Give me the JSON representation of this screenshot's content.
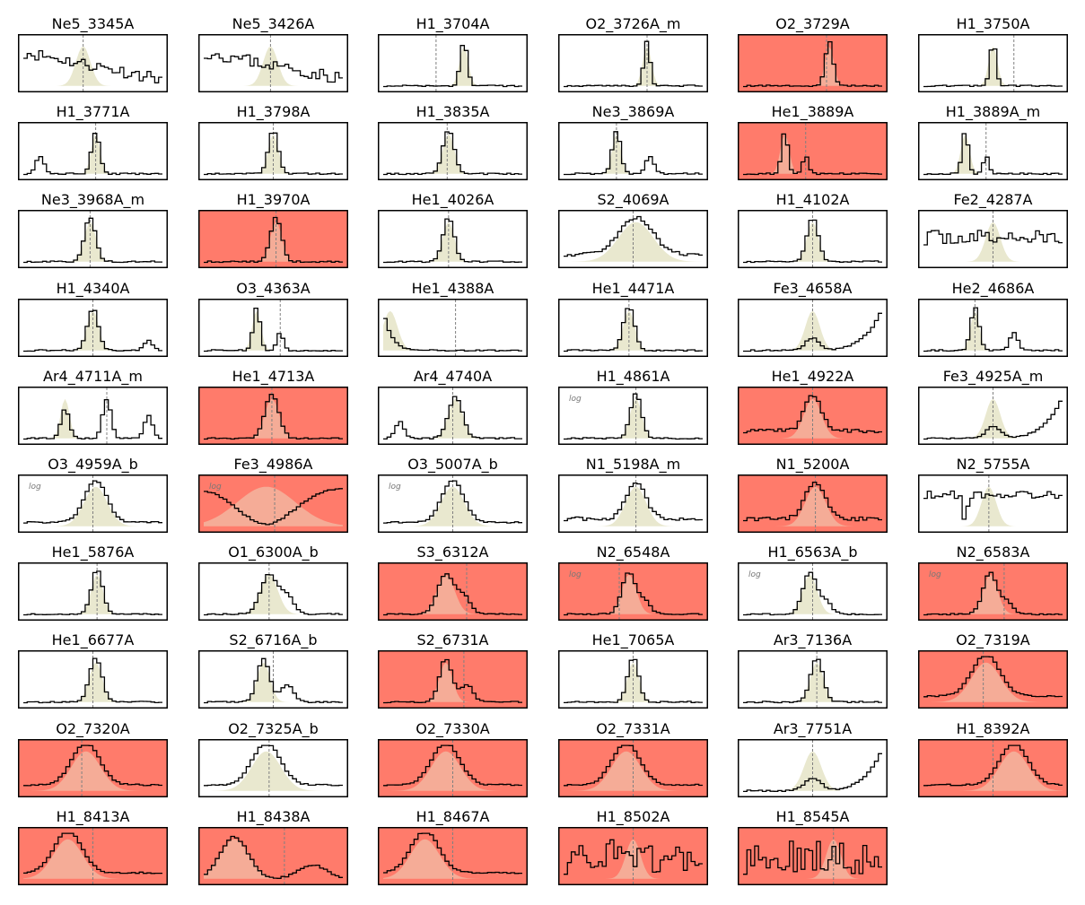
{
  "figure": {
    "background": "#ffffff",
    "flagged_color": "#ff7b6b",
    "normal_color": "#ffffff",
    "fill_color": "#e9e8cf",
    "line_color": "#000000",
    "marker_color": "#808080",
    "log_label": "log"
  },
  "chart_data": [
    {
      "title": "Ne5_3345A",
      "flagged": false,
      "log": false,
      "marker": 0.43,
      "profile": "noisy_up_left",
      "seed": 11
    },
    {
      "title": "Ne5_3426A",
      "flagged": false,
      "log": false,
      "marker": 0.48,
      "profile": "noisy_up_left",
      "seed": 23
    },
    {
      "title": "H1_3704A",
      "flagged": false,
      "log": false,
      "marker": 0.38,
      "profile": "single",
      "peak": 0.58,
      "width": 0.025
    },
    {
      "title": "O2_3726A_m",
      "flagged": false,
      "log": false,
      "marker": 0.6,
      "profile": "single",
      "peak": 0.6,
      "width": 0.022
    },
    {
      "title": "O2_3729A",
      "flagged": true,
      "log": false,
      "marker": 0.6,
      "profile": "single",
      "peak": 0.62,
      "width": 0.028
    },
    {
      "title": "H1_3750A",
      "flagged": false,
      "log": false,
      "marker": 0.65,
      "profile": "single",
      "peak": 0.5,
      "width": 0.022
    },
    {
      "title": "H1_3771A",
      "flagged": false,
      "log": false,
      "marker": 0.52,
      "profile": "single_side",
      "peak": 0.52,
      "width": 0.03
    },
    {
      "title": "H1_3798A",
      "flagged": false,
      "log": false,
      "marker": 0.5,
      "profile": "single",
      "peak": 0.5,
      "width": 0.035
    },
    {
      "title": "H1_3835A",
      "flagged": false,
      "log": false,
      "marker": 0.46,
      "profile": "single",
      "peak": 0.47,
      "width": 0.04
    },
    {
      "title": "Ne3_3869A",
      "flagged": false,
      "log": false,
      "marker": 0.38,
      "profile": "double",
      "peak": 0.38,
      "peak2": 0.62,
      "width": 0.03
    },
    {
      "title": "He1_3889A",
      "flagged": true,
      "log": false,
      "marker": 0.45,
      "profile": "double",
      "peak": 0.3,
      "peak2": 0.45,
      "width": 0.022
    },
    {
      "title": "H1_3889A_m",
      "flagged": false,
      "log": false,
      "marker": 0.45,
      "profile": "double",
      "peak": 0.3,
      "peak2": 0.45,
      "width": 0.022
    },
    {
      "title": "Ne3_3968A_m",
      "flagged": false,
      "log": false,
      "marker": 0.48,
      "profile": "single",
      "peak": 0.48,
      "width": 0.04
    },
    {
      "title": "H1_3970A",
      "flagged": true,
      "log": false,
      "marker": 0.52,
      "profile": "single",
      "peak": 0.52,
      "width": 0.04
    },
    {
      "title": "He1_4026A",
      "flagged": false,
      "log": false,
      "marker": 0.47,
      "profile": "single",
      "peak": 0.47,
      "width": 0.04
    },
    {
      "title": "S2_4069A",
      "flagged": false,
      "log": false,
      "marker": 0.5,
      "profile": "broad_noisy",
      "peak": 0.52,
      "width": 0.12
    },
    {
      "title": "H1_4102A",
      "flagged": false,
      "log": false,
      "marker": 0.5,
      "profile": "single",
      "peak": 0.5,
      "width": 0.04
    },
    {
      "title": "Fe2_4287A",
      "flagged": false,
      "log": false,
      "marker": 0.5,
      "profile": "noisy_flat",
      "seed": 37
    },
    {
      "title": "H1_4340A",
      "flagged": false,
      "log": false,
      "marker": 0.5,
      "profile": "single_right_bump",
      "peak": 0.5,
      "width": 0.04
    },
    {
      "title": "O3_4363A",
      "flagged": false,
      "log": false,
      "marker": 0.55,
      "profile": "double",
      "peak": 0.38,
      "peak2": 0.55,
      "width": 0.025
    },
    {
      "title": "He1_4388A",
      "flagged": false,
      "log": false,
      "marker": 0.52,
      "profile": "decay",
      "peak": 0.05,
      "width": 0.05
    },
    {
      "title": "He1_4471A",
      "flagged": false,
      "log": false,
      "marker": 0.47,
      "profile": "single",
      "peak": 0.47,
      "width": 0.04
    },
    {
      "title": "Fe3_4658A",
      "flagged": false,
      "log": false,
      "marker": 0.5,
      "profile": "rise_right",
      "peak": 0.5,
      "width": 0.05
    },
    {
      "title": "He2_4686A",
      "flagged": false,
      "log": false,
      "marker": 0.37,
      "profile": "double",
      "peak": 0.37,
      "peak2": 0.65,
      "width": 0.03
    },
    {
      "title": "Ar4_4711A_m",
      "flagged": false,
      "log": false,
      "marker": 0.6,
      "profile": "triple",
      "peak": 0.3,
      "peak2": 0.6,
      "width": 0.03
    },
    {
      "title": "He1_4713A",
      "flagged": true,
      "log": false,
      "marker": 0.49,
      "profile": "single",
      "peak": 0.49,
      "width": 0.05
    },
    {
      "title": "Ar4_4740A",
      "flagged": false,
      "log": false,
      "marker": 0.5,
      "profile": "single_side",
      "peak": 0.52,
      "width": 0.05
    },
    {
      "title": "H1_4861A",
      "flagged": false,
      "log": true,
      "marker": 0.52,
      "profile": "single",
      "peak": 0.52,
      "width": 0.04
    },
    {
      "title": "He1_4922A",
      "flagged": true,
      "log": false,
      "marker": 0.5,
      "profile": "broad_noisy",
      "peak": 0.5,
      "width": 0.06
    },
    {
      "title": "Fe3_4925A_m",
      "flagged": false,
      "log": false,
      "marker": 0.5,
      "profile": "rise_right",
      "peak": 0.5,
      "width": 0.05
    },
    {
      "title": "O3_4959A_b",
      "flagged": false,
      "log": true,
      "marker": 0.5,
      "profile": "broad_log",
      "peak": 0.52,
      "width": 0.08
    },
    {
      "title": "Fe3_4986A",
      "flagged": true,
      "log": true,
      "marker": 0.51,
      "profile": "valley",
      "peak": 0.45,
      "width": 0.2
    },
    {
      "title": "O3_5007A_b",
      "flagged": false,
      "log": true,
      "marker": 0.5,
      "profile": "broad_log",
      "peak": 0.5,
      "width": 0.08
    },
    {
      "title": "N1_5198A_m",
      "flagged": false,
      "log": false,
      "marker": 0.52,
      "profile": "broad_noisy",
      "peak": 0.52,
      "width": 0.07
    },
    {
      "title": "N1_5200A",
      "flagged": true,
      "log": false,
      "marker": 0.52,
      "profile": "broad_noisy",
      "peak": 0.52,
      "width": 0.07
    },
    {
      "title": "N2_5755A",
      "flagged": false,
      "log": false,
      "marker": 0.47,
      "profile": "noisy_dip",
      "seed": 53
    },
    {
      "title": "He1_5876A",
      "flagged": false,
      "log": false,
      "marker": 0.53,
      "profile": "single",
      "peak": 0.53,
      "width": 0.04
    },
    {
      "title": "O1_6300A_b",
      "flagged": false,
      "log": false,
      "marker": 0.47,
      "profile": "broad_shoulder",
      "peak": 0.47,
      "width": 0.06
    },
    {
      "title": "S3_6312A",
      "flagged": true,
      "log": false,
      "marker": 0.6,
      "profile": "broad_shoulder",
      "peak": 0.45,
      "width": 0.06
    },
    {
      "title": "N2_6548A",
      "flagged": true,
      "log": true,
      "marker": 0.4,
      "profile": "single_shoulder",
      "peak": 0.47,
      "width": 0.05
    },
    {
      "title": "H1_6563A_b",
      "flagged": false,
      "log": true,
      "marker": 0.5,
      "profile": "single_shoulder",
      "peak": 0.48,
      "width": 0.05
    },
    {
      "title": "N2_6583A",
      "flagged": true,
      "log": true,
      "marker": 0.58,
      "profile": "single_shoulder",
      "peak": 0.48,
      "width": 0.05
    },
    {
      "title": "He1_6677A",
      "flagged": false,
      "log": false,
      "marker": 0.5,
      "profile": "single",
      "peak": 0.52,
      "width": 0.045
    },
    {
      "title": "S2_6716A_b",
      "flagged": false,
      "log": false,
      "marker": 0.5,
      "profile": "double",
      "peak": 0.43,
      "peak2": 0.6,
      "width": 0.045
    },
    {
      "title": "S2_6731A",
      "flagged": true,
      "log": false,
      "marker": 0.58,
      "profile": "double",
      "peak": 0.45,
      "peak2": 0.6,
      "width": 0.045
    },
    {
      "title": "He1_7065A",
      "flagged": false,
      "log": false,
      "marker": 0.5,
      "profile": "single",
      "peak": 0.5,
      "width": 0.04
    },
    {
      "title": "Ar3_7136A",
      "flagged": false,
      "log": false,
      "marker": 0.53,
      "profile": "single",
      "peak": 0.53,
      "width": 0.045
    },
    {
      "title": "O2_7319A",
      "flagged": true,
      "log": false,
      "marker": 0.43,
      "profile": "broad",
      "peak": 0.45,
      "width": 0.1
    },
    {
      "title": "O2_7320A",
      "flagged": true,
      "log": false,
      "marker": 0.42,
      "profile": "broad",
      "peak": 0.45,
      "width": 0.1
    },
    {
      "title": "O2_7325A_b",
      "flagged": false,
      "log": false,
      "marker": 0.47,
      "profile": "broad",
      "peak": 0.45,
      "width": 0.1
    },
    {
      "title": "O2_7330A",
      "flagged": true,
      "log": false,
      "marker": 0.5,
      "profile": "broad",
      "peak": 0.45,
      "width": 0.1
    },
    {
      "title": "O2_7331A",
      "flagged": true,
      "log": false,
      "marker": 0.5,
      "profile": "broad",
      "peak": 0.45,
      "width": 0.1
    },
    {
      "title": "Ar3_7751A",
      "flagged": false,
      "log": false,
      "marker": 0.5,
      "profile": "rise_right",
      "peak": 0.5,
      "width": 0.06
    },
    {
      "title": "H1_8392A",
      "flagged": true,
      "log": false,
      "marker": 0.5,
      "profile": "broad",
      "peak": 0.65,
      "width": 0.1
    },
    {
      "title": "H1_8413A",
      "flagged": true,
      "log": false,
      "marker": 0.5,
      "profile": "broad",
      "peak": 0.32,
      "width": 0.1
    },
    {
      "title": "H1_8438A",
      "flagged": true,
      "log": false,
      "marker": 0.58,
      "profile": "broad_left",
      "peak": 0.22,
      "width": 0.1
    },
    {
      "title": "H1_8467A",
      "flagged": true,
      "log": false,
      "marker": 0.5,
      "profile": "broad",
      "peak": 0.3,
      "width": 0.1
    },
    {
      "title": "H1_8502A",
      "flagged": true,
      "log": false,
      "marker": 0.5,
      "profile": "noisy_full",
      "seed": 71
    },
    {
      "title": "H1_8545A",
      "flagged": true,
      "log": false,
      "marker": 0.65,
      "profile": "noisy_full",
      "seed": 89
    }
  ]
}
